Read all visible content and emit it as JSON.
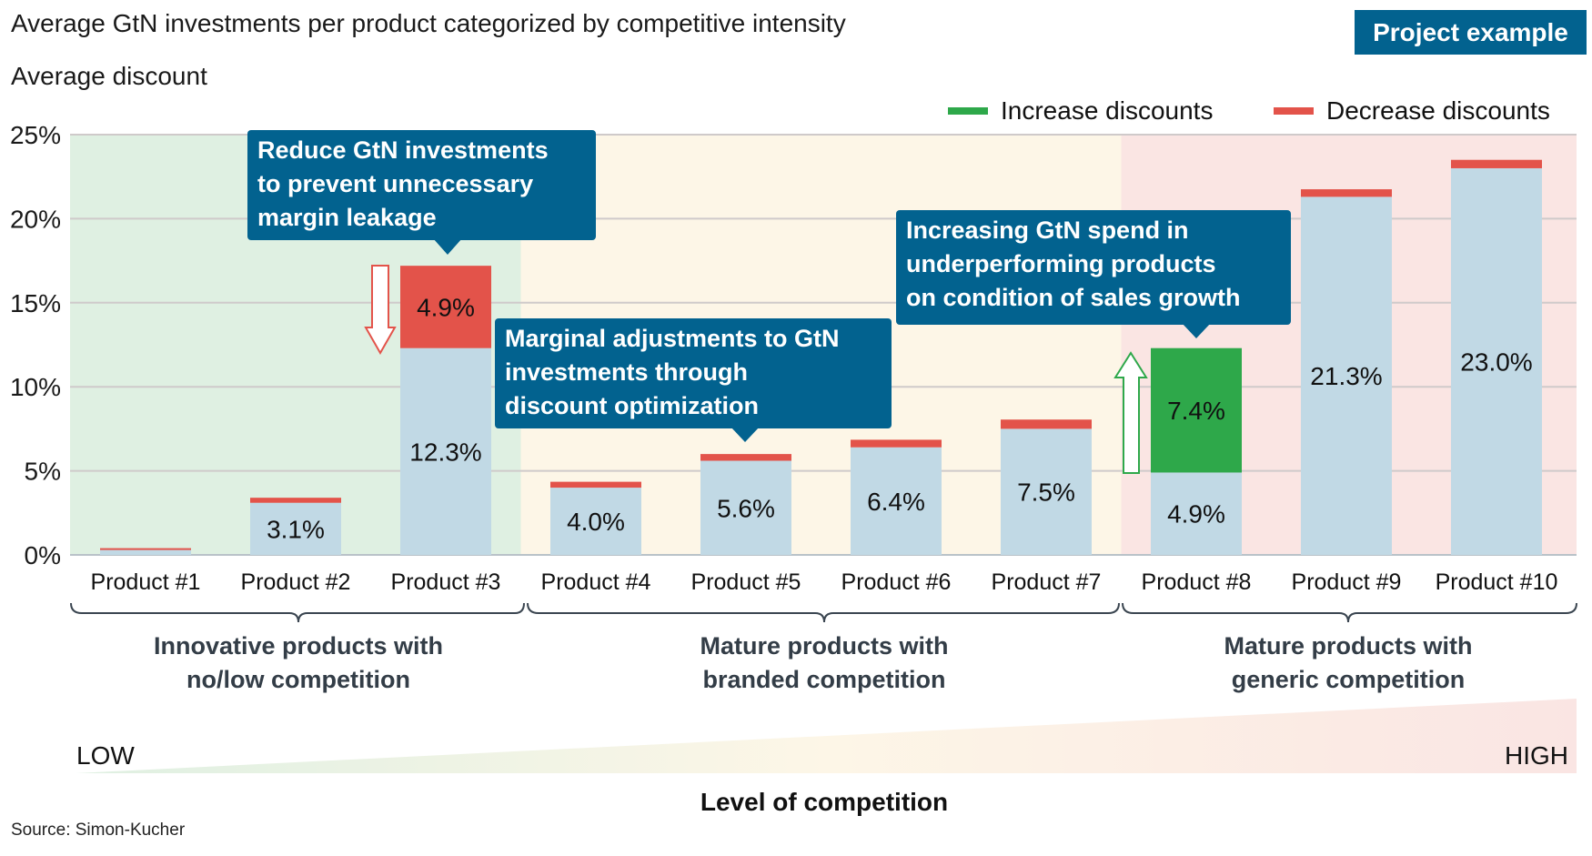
{
  "title": "Average GtN investments per product categorized by competitive intensity",
  "subtitle": "Average discount",
  "badge": "Project example",
  "legend": [
    {
      "label": "Increase discounts",
      "color": "#2ea84a"
    },
    {
      "label": "Decrease discounts",
      "color": "#e3534a"
    }
  ],
  "colors": {
    "base": "#c1d9e5",
    "increase": "#2ea84a",
    "decrease": "#e3534a",
    "callout": "#02628f"
  },
  "chart_data": {
    "type": "bar",
    "stacked": true,
    "ylabel": "Average discount",
    "ylim": [
      0,
      25
    ],
    "yticks": [
      "0%",
      "5%",
      "10%",
      "15%",
      "20%",
      "25%"
    ],
    "ytick_values": [
      0,
      5,
      10,
      15,
      20,
      25
    ],
    "grid": true,
    "legend_position": "top-right",
    "categories": [
      "Product #1",
      "Product #2",
      "Product #3",
      "Product #4",
      "Product #5",
      "Product #6",
      "Product #7",
      "Product #8",
      "Product #9",
      "Product #10"
    ],
    "series": [
      {
        "name": "",
        "role": "base",
        "values": [
          0.3,
          3.1,
          12.3,
          4.0,
          5.6,
          6.4,
          7.5,
          4.9,
          21.3,
          23.0
        ],
        "labels": [
          "",
          "3.1%",
          "12.3%",
          "4.0%",
          "5.6%",
          "6.4%",
          "7.5%",
          "4.9%",
          "21.3%",
          "23.0%"
        ]
      },
      {
        "name": "Increase discounts",
        "role": "increase",
        "values": [
          0,
          0,
          0,
          0,
          0,
          0,
          0,
          7.4,
          0,
          0
        ],
        "labels": [
          "",
          "",
          "",
          "",
          "",
          "",
          "",
          "7.4%",
          "",
          ""
        ]
      },
      {
        "name": "Decrease discounts",
        "role": "decrease",
        "values": [
          0.1,
          0.3,
          4.9,
          0.35,
          0.4,
          0.45,
          0.55,
          0,
          0.45,
          0.5
        ],
        "labels": [
          "",
          "",
          "4.9%",
          "",
          "",
          "",
          "",
          "",
          "",
          ""
        ]
      }
    ],
    "regions": [
      {
        "from": "Product #1",
        "to": "Product #3",
        "color": "#dff0e2"
      },
      {
        "from": "Product #4",
        "to": "Product #7",
        "color": "#fdf6e7"
      },
      {
        "from": "Product #8",
        "to": "Product #10",
        "color": "#fae5e3"
      }
    ]
  },
  "callouts": [
    {
      "lines": [
        "Reduce GtN investments",
        "to prevent unnecessary",
        "margin leakage"
      ],
      "target": "Product #3"
    },
    {
      "lines": [
        "Marginal adjustments to GtN",
        "investments through",
        "discount optimization"
      ],
      "target": "Product #5"
    },
    {
      "lines": [
        "Increasing GtN spend in",
        "underperforming products",
        "on condition of  sales growth"
      ],
      "target": "Product #8"
    }
  ],
  "groups": [
    {
      "lines": [
        "Innovative products with",
        "no/low competition"
      ]
    },
    {
      "lines": [
        "Mature products with",
        "branded competition"
      ]
    },
    {
      "lines": [
        "Mature products with",
        "generic competition"
      ]
    }
  ],
  "competition_scale": {
    "low": "LOW",
    "high": "HIGH",
    "title": "Level of competition"
  },
  "source": "Source: Simon-Kucher"
}
